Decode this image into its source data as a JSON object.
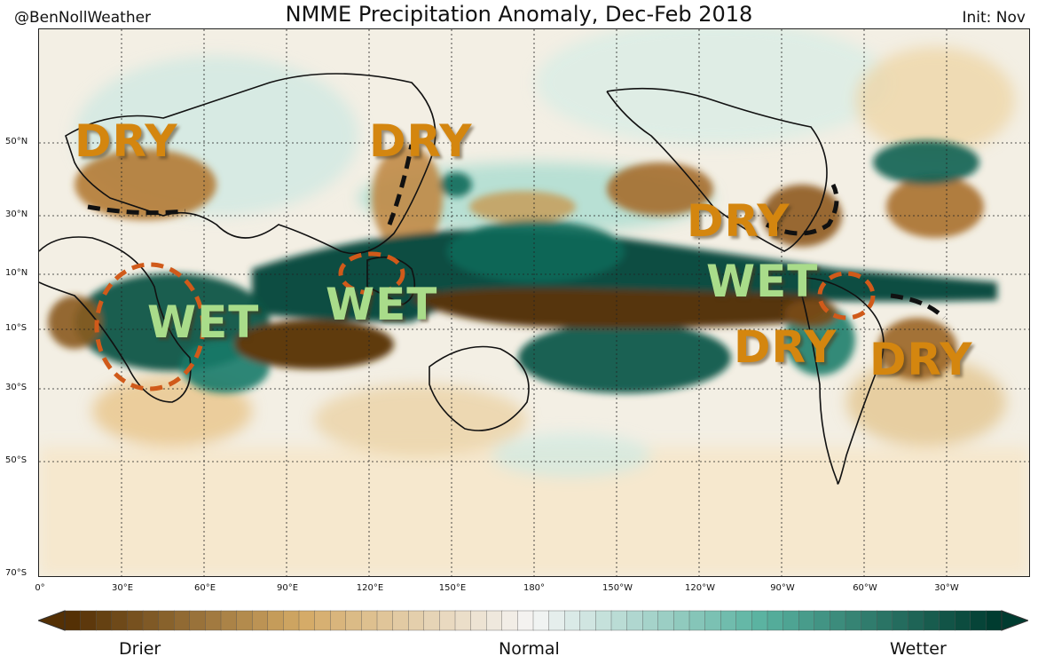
{
  "header": {
    "credit": "@BenNollWeather",
    "title": "NMME Precipitation Anomaly, Dec-Feb 2018",
    "init": "Init: Nov"
  },
  "lat_labels": [
    "50°N",
    "30°N",
    "10°N",
    "10°S",
    "30°S",
    "50°S",
    "70°S"
  ],
  "lon_labels": [
    "0°",
    "30°E",
    "60°E",
    "90°E",
    "120°E",
    "150°E",
    "180°",
    "150°W",
    "120°W",
    "90°W",
    "60°W",
    "30°W"
  ],
  "annotations": [
    {
      "text": "DRY",
      "kind": "dry",
      "region": "europe"
    },
    {
      "text": "DRY",
      "kind": "dry",
      "region": "east-asia"
    },
    {
      "text": "DRY",
      "kind": "dry",
      "region": "southeast-us"
    },
    {
      "text": "WET",
      "kind": "wet",
      "region": "east-africa"
    },
    {
      "text": "WET",
      "kind": "wet",
      "region": "maritime-continent"
    },
    {
      "text": "WET",
      "kind": "wet",
      "region": "eastern-pacific"
    },
    {
      "text": "DRY",
      "kind": "dry",
      "region": "caribbean"
    },
    {
      "text": "DRY",
      "kind": "dry",
      "region": "brazil"
    }
  ],
  "colorbar": {
    "low_label": "Drier",
    "mid_label": "Normal",
    "high_label": "Wetter",
    "dry_color": "#543005",
    "neutral_color": "#f5f5f5",
    "wet_color": "#003c30"
  }
}
